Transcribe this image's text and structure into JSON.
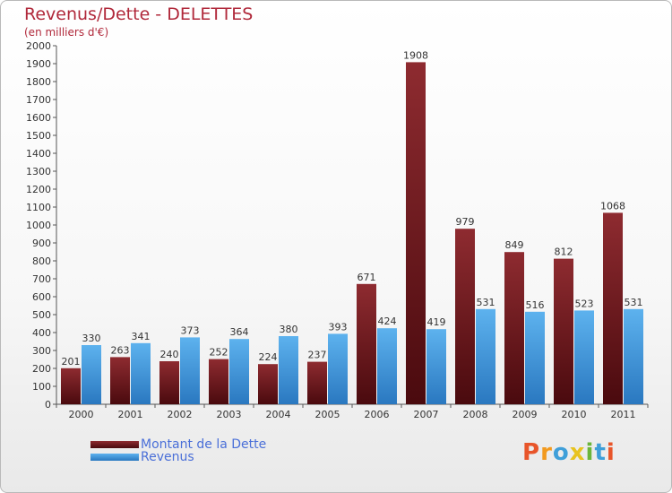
{
  "title": "Revenus/Dette - DELETTES",
  "subtitle": "(en milliers d'€)",
  "legend": {
    "debt_label": "Montant de la Dette",
    "revenue_label": "Revenus"
  },
  "logo": {
    "text": "Proxiti"
  },
  "colors": {
    "debt": "#7a1f24",
    "debt_dark": "#4a0a0e",
    "revenue": "#4aa3e6",
    "revenue_dark": "#2a78c0",
    "title": "#b0283a",
    "legend_text": "#4a6fd8"
  },
  "chart_data": {
    "type": "bar",
    "title": "Revenus/Dette - DELETTES",
    "ylabel": "(en milliers d'€)",
    "xlabel": "",
    "categories": [
      "2000",
      "2001",
      "2002",
      "2003",
      "2004",
      "2005",
      "2006",
      "2007",
      "2008",
      "2009",
      "2010",
      "2011"
    ],
    "series": [
      {
        "name": "Montant de la Dette",
        "values": [
          201,
          263,
          240,
          252,
          224,
          237,
          671,
          1908,
          979,
          849,
          812,
          1068
        ]
      },
      {
        "name": "Revenus",
        "values": [
          330,
          341,
          373,
          364,
          380,
          393,
          424,
          419,
          531,
          516,
          523,
          531
        ]
      }
    ],
    "ylim": [
      0,
      2000
    ],
    "yticks": [
      0,
      100,
      200,
      300,
      400,
      500,
      600,
      700,
      800,
      900,
      1000,
      1100,
      1200,
      1300,
      1400,
      1500,
      1600,
      1700,
      1800,
      1900,
      2000
    ],
    "grid": false,
    "legend_position": "bottom-left"
  }
}
